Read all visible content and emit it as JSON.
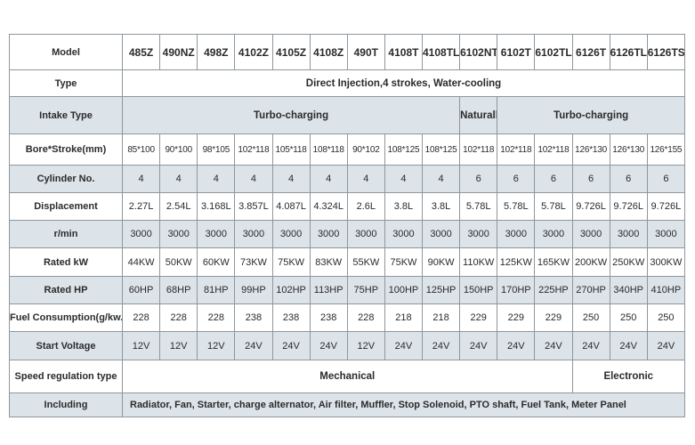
{
  "table": {
    "row_labels": {
      "model": "Model",
      "type": "Type",
      "intake": "Intake Type",
      "bore_stroke": "Bore*Stroke(mm)",
      "cylinder": "Cylinder No.",
      "displacement": "Displacement",
      "rpm": "r/min",
      "rated_kw": "Rated kW",
      "rated_hp": "Rated HP",
      "fuel": "Fuel Consumption(g/kw.h)",
      "voltage": "Start Voltage",
      "speed": "Speed regulation type",
      "including": "Including"
    },
    "models": [
      "485Z",
      "490NZ",
      "498Z",
      "4102Z",
      "4105Z",
      "4108Z",
      "490T",
      "4108T",
      "4108TL",
      "6102NT",
      "6102T",
      "6102TL",
      "6126T",
      "6126TL",
      "6126TS"
    ],
    "type_value": "Direct Injection,4 strokes, Water-cooling",
    "intake_left": "Turbo-charging",
    "intake_mid": "Naturally",
    "intake_right": "Turbo-charging",
    "bore_stroke": [
      "85*100",
      "90*100",
      "98*105",
      "102*118",
      "105*118",
      "108*118",
      "90*102",
      "108*125",
      "108*125",
      "102*118",
      "102*118",
      "102*118",
      "126*130",
      "126*130",
      "126*155"
    ],
    "cylinder": [
      "4",
      "4",
      "4",
      "4",
      "4",
      "4",
      "4",
      "4",
      "4",
      "6",
      "6",
      "6",
      "6",
      "6",
      "6"
    ],
    "displacement": [
      "2.27L",
      "2.54L",
      "3.168L",
      "3.857L",
      "4.087L",
      "4.324L",
      "2.6L",
      "3.8L",
      "3.8L",
      "5.78L",
      "5.78L",
      "5.78L",
      "9.726L",
      "9.726L",
      "9.726L"
    ],
    "rpm": [
      "3000",
      "3000",
      "3000",
      "3000",
      "3000",
      "3000",
      "3000",
      "3000",
      "3000",
      "3000",
      "3000",
      "3000",
      "3000",
      "3000",
      "3000"
    ],
    "rated_kw": [
      "44KW",
      "50KW",
      "60KW",
      "73KW",
      "75KW",
      "83KW",
      "55KW",
      "75KW",
      "90KW",
      "110KW",
      "125KW",
      "165KW",
      "200KW",
      "250KW",
      "300KW"
    ],
    "rated_hp": [
      "60HP",
      "68HP",
      "81HP",
      "99HP",
      "102HP",
      "113HP",
      "75HP",
      "100HP",
      "125HP",
      "150HP",
      "170HP",
      "225HP",
      "270HP",
      "340HP",
      "410HP"
    ],
    "fuel": [
      "228",
      "228",
      "228",
      "238",
      "238",
      "238",
      "228",
      "218",
      "218",
      "229",
      "229",
      "229",
      "250",
      "250",
      "250"
    ],
    "voltage": [
      "12V",
      "12V",
      "12V",
      "24V",
      "24V",
      "24V",
      "12V",
      "24V",
      "24V",
      "24V",
      "24V",
      "24V",
      "24V",
      "24V",
      "24V"
    ],
    "speed_left": "Mechanical",
    "speed_right": "Electronic",
    "including_value": "Radiator, Fan, Starter, charge alternator, Air filter, Muffler, Stop Solenoid, PTO shaft, Fuel Tank, Meter Panel"
  },
  "colors": {
    "row_shade": "#dce3e9",
    "border": "#8f979c",
    "text": "#2b2b2b"
  }
}
